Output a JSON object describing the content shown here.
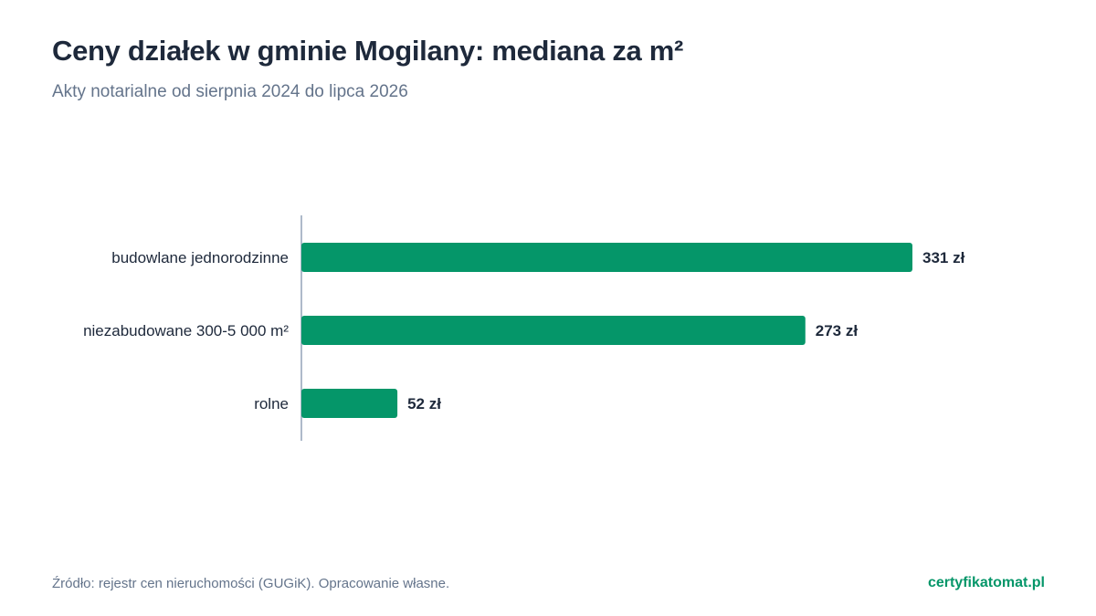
{
  "title": "Ceny działek w gminie Mogilany: mediana za m²",
  "subtitle": "Akty notarialne od sierpnia 2024 do lipca 2026",
  "footer": {
    "source": "Źródło: rejestr cen nieruchomości (GUGiK). Opracowanie własne.",
    "brand": "certyfikatomat.pl"
  },
  "colors": {
    "bar": "#059669",
    "axis": "#94a3b8",
    "category_text": "#1e293b",
    "value_text": "#1e293b"
  },
  "chart_data": {
    "type": "bar",
    "orientation": "horizontal",
    "categories": [
      "budowlane jednorodzinne",
      "niezabudowane 300-5 000 m²",
      "rolne"
    ],
    "values": [
      331,
      273,
      52
    ],
    "value_labels": [
      "331 zł",
      "273 zł",
      "52 zł"
    ],
    "xlim": [
      0,
      331
    ],
    "grid": false,
    "legend": "none"
  }
}
